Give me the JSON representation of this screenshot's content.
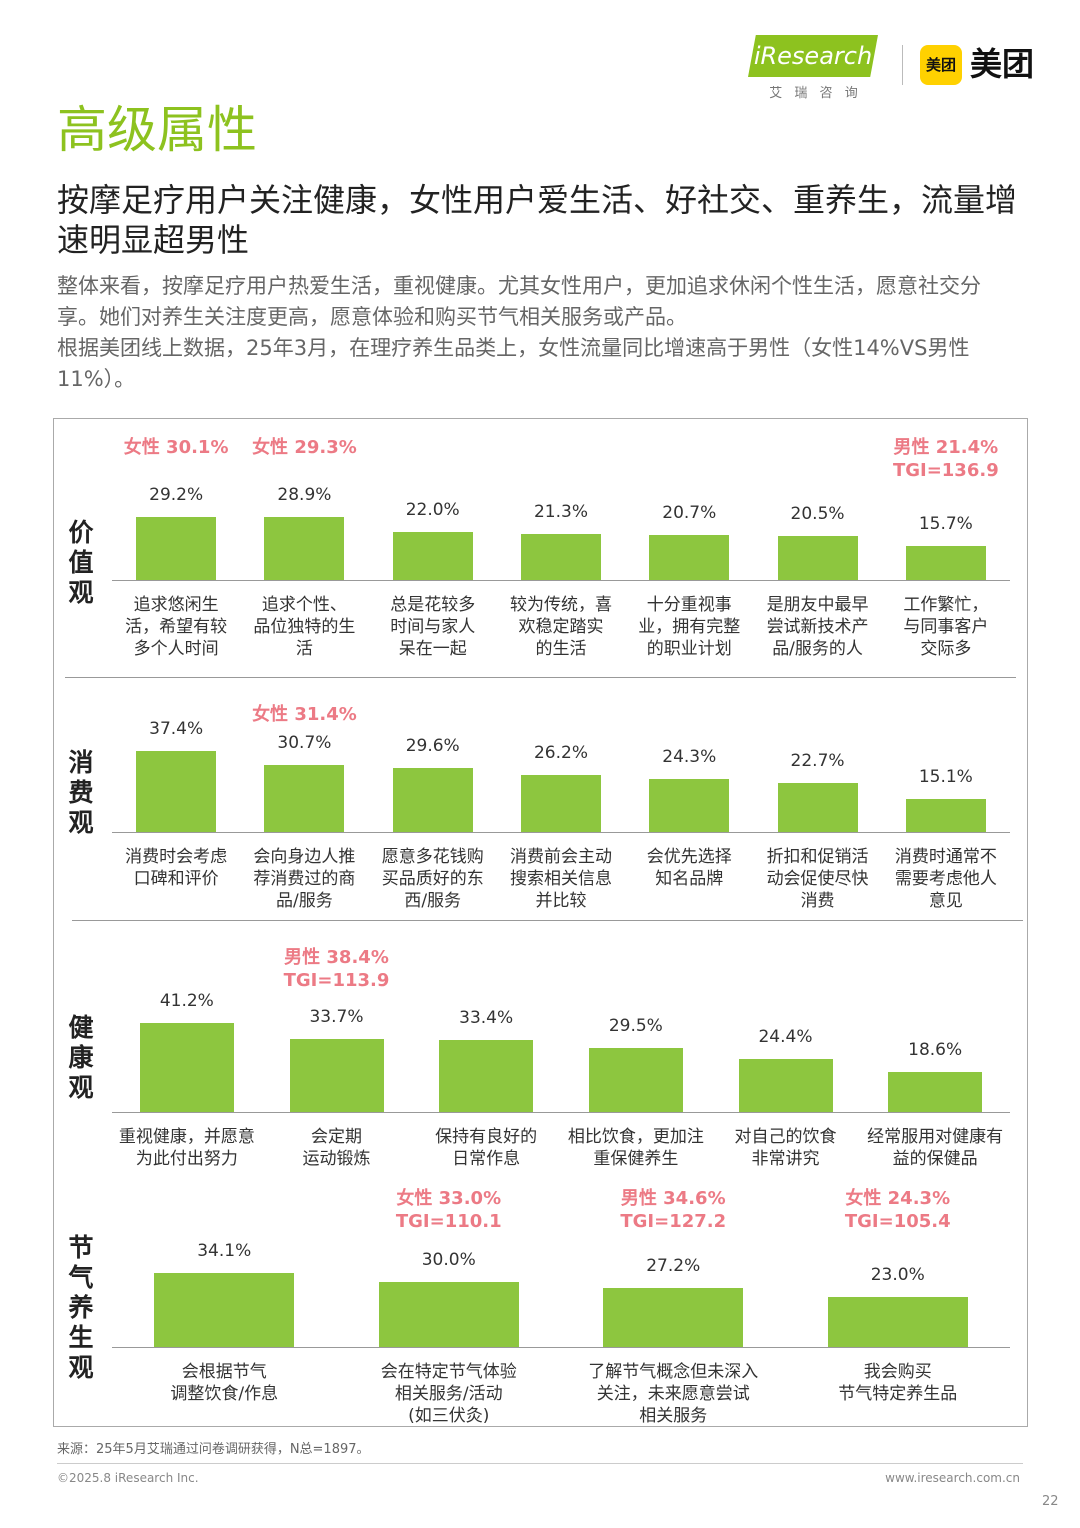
{
  "header": {
    "brand": "iResearch",
    "brand_cn": "艾 瑞 咨 询",
    "partner_icon": "美团",
    "partner": "美团"
  },
  "section_title": "高级属性",
  "headline": "按摩足疗用户关注健康，女性用户爱生活、好社交、重养生，流量增速明显超男性",
  "paragraphs": [
    "整体来看，按摩足疗用户热爱生活，重视健康。尤其女性用户，更加追求休闲个性生活，愿意社交分享。她们对养生关注度更高，愿意体验和购买节气相关服务或产品。",
    "根据美团线上数据，25年3月，在理疗养生品类上，女性流量同比增速高于男性（女性14%VS男性11%）。"
  ],
  "chart_data": [
    {
      "type": "bar",
      "title": "价值观",
      "color": "#8dc63f",
      "categories": [
        "追求悠闲生\n活，希望有较\n多个人时间",
        "追求个性、\n品位独特的生\n活",
        "总是花较多\n时间与家人\n呆在一起",
        "较为传统，喜\n欢稳定踏实\n的生活",
        "十分重视事\n业，拥有完整\n的职业计划",
        "是朋友中最早\n尝试新技术产\n品/服务的人",
        "工作繁忙，\n与同事客户\n交际多"
      ],
      "values": [
        29.2,
        28.9,
        22.0,
        21.3,
        20.7,
        20.5,
        15.7
      ],
      "value_labels": [
        "29.2%",
        "28.9%",
        "22.0%",
        "21.3%",
        "20.7%",
        "20.5%",
        "15.7%"
      ],
      "annotations": [
        [
          "女性 30.1%"
        ],
        [
          "女性 29.3%"
        ],
        null,
        null,
        null,
        null,
        [
          "男性 21.4%",
          "TGI=136.9"
        ]
      ]
    },
    {
      "type": "bar",
      "title": "消费观",
      "color": "#8dc63f",
      "categories": [
        "消费时会考虑\n口碑和评价",
        "会向身边人推\n荐消费过的商\n品/服务",
        "愿意多花钱购\n买品质好的东\n西/服务",
        "消费前会主动\n搜索相关信息\n并比较",
        "会优先选择\n知名品牌",
        "折扣和促销活\n动会促使尽快\n消费",
        "消费时通常不\n需要考虑他人\n意见"
      ],
      "values": [
        37.4,
        30.7,
        29.6,
        26.2,
        24.3,
        22.7,
        15.1
      ],
      "value_labels": [
        "37.4%",
        "30.7%",
        "29.6%",
        "26.2%",
        "24.3%",
        "22.7%",
        "15.1%"
      ],
      "annotations": [
        null,
        [
          "女性 31.4%"
        ],
        null,
        null,
        null,
        null,
        null
      ]
    },
    {
      "type": "bar",
      "title": "健康观",
      "color": "#8dc63f",
      "categories": [
        "重视健康，并愿意\n为此付出努力",
        "会定期\n运动锻炼",
        "保持有良好的\n日常作息",
        "相比饮食，更加注\n重保健养生",
        "对自己的饮食\n非常讲究",
        "经常服用对健康有\n益的保健品"
      ],
      "values": [
        41.2,
        33.7,
        33.4,
        29.5,
        24.4,
        18.6
      ],
      "value_labels": [
        "41.2%",
        "33.7%",
        "33.4%",
        "29.5%",
        "24.4%",
        "18.6%"
      ],
      "annotations": [
        null,
        [
          "男性 38.4%",
          "TGI=113.9"
        ],
        null,
        null,
        null,
        null
      ]
    },
    {
      "type": "bar",
      "title": "节气养生观",
      "color": "#8dc63f",
      "categories": [
        "会根据节气\n调整饮食/作息",
        "会在特定节气体验\n相关服务/活动\n(如三伏灸)",
        "了解节气概念但未深入\n关注，未来愿意尝试\n相关服务",
        "我会购买\n节气特定养生品"
      ],
      "values": [
        34.1,
        30.0,
        27.2,
        23.0
      ],
      "value_labels": [
        "34.1%",
        "30.0%",
        "27.2%",
        "23.0%"
      ],
      "annotations": [
        null,
        [
          "女性 33.0%",
          "TGI=110.1"
        ],
        [
          "男性 34.6%",
          "TGI=127.2"
        ],
        [
          "女性 24.3%",
          "TGI=105.4"
        ]
      ]
    }
  ],
  "source": "来源：25年5月艾瑞通过问卷调研获得，N总=1897。",
  "footer": {
    "copyright": "©2025.8 iResearch Inc.",
    "website": "www.iresearch.com.cn",
    "page": "22"
  }
}
